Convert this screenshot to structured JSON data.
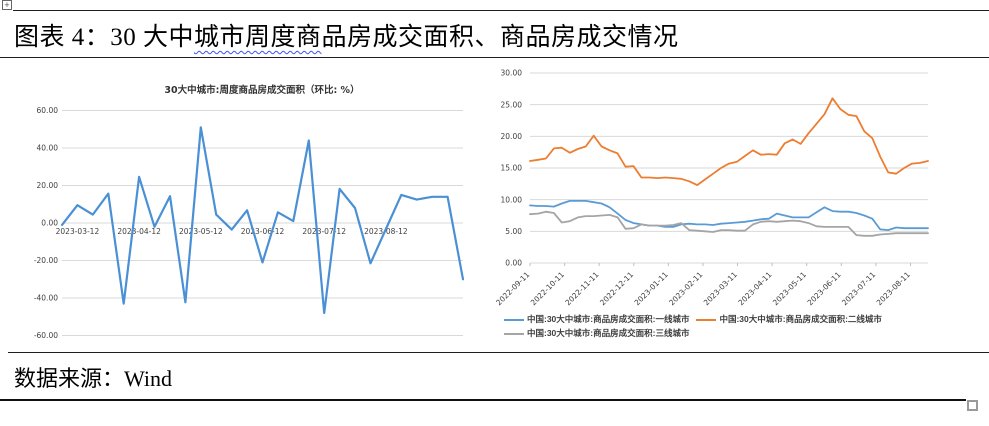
{
  "document": {
    "figure_title_prefix": "图表 4：30 大中",
    "figure_title_squiggle": "城市周度商",
    "figure_title_suffix": "品房成交面积、商品房成交情况",
    "source_text": "数据来源：Wind"
  },
  "colors": {
    "line_blue": "#5B9BD5",
    "line_blue_left": "#4A90D5",
    "line_orange": "#ED7D31",
    "line_gray": "#A5A5A5",
    "gridline": "#D9D9D9",
    "chart_text": "#404040"
  },
  "chart_data": [
    {
      "type": "line",
      "title": "30大中城市:周度商品房成交面积（环比: %）",
      "ylim": [
        -60,
        60
      ],
      "ytick_step": 20,
      "grid": true,
      "legend_position": "none",
      "x_tick_labels": [
        "2023-03-12",
        "2023-04-12",
        "2023-05-12",
        "2023-06-12",
        "2023-07-12",
        "2023-08-12"
      ],
      "series": [
        {
          "name": "30大中城市:周度商品房成交面积(环比,%)",
          "color": "#4A90D5",
          "values": [
            -1,
            9.5,
            4.5,
            15.7,
            -43,
            24.6,
            -2,
            14.3,
            -42.3,
            51,
            4.5,
            -3.5,
            6.8,
            -21,
            5.7,
            1,
            44,
            -48,
            18.2,
            8,
            -21.5,
            -3.2,
            15,
            12.5,
            14,
            14,
            -30
          ]
        }
      ]
    },
    {
      "type": "line",
      "title": "",
      "ylim": [
        0,
        30
      ],
      "ytick_step": 5,
      "grid": true,
      "legend_position": "bottom",
      "x_tick_labels": [
        "2022-09-11",
        "2022-10-11",
        "2022-11-11",
        "2022-12-11",
        "2023-01-11",
        "2023-02-11",
        "2023-03-11",
        "2023-04-11",
        "2023-05-11",
        "2023-06-11",
        "2023-07-11",
        "2023-08-11"
      ],
      "series": [
        {
          "name": "中国:30大中城市:商品房成交面积:一线城市",
          "color": "#5B9BD5",
          "values": [
            9.1,
            9.0,
            9.0,
            8.9,
            9.4,
            9.8,
            9.8,
            9.8,
            9.6,
            9.4,
            8.8,
            7.8,
            6.8,
            6.3,
            6.1,
            5.9,
            5.9,
            5.7,
            5.7,
            6.1,
            6.2,
            6.1,
            6.1,
            6.0,
            6.2,
            6.3,
            6.4,
            6.5,
            6.7,
            6.9,
            7.0,
            7.8,
            7.5,
            7.2,
            7.2,
            7.2,
            8.0,
            8.8,
            8.2,
            8.1,
            8.1,
            7.9,
            7.5,
            7.0,
            5.3,
            5.2,
            5.6,
            5.5,
            5.5,
            5.5,
            5.5
          ]
        },
        {
          "name": "中国:30大中城市:商品房成交面积:二线城市",
          "color": "#ED7D31",
          "values": [
            16.1,
            16.3,
            16.5,
            18.1,
            18.2,
            17.4,
            18.0,
            18.4,
            20.1,
            18.4,
            17.8,
            17.3,
            15.2,
            15.3,
            13.5,
            13.5,
            13.4,
            13.5,
            13.4,
            13.3,
            12.9,
            12.3,
            13.2,
            14.1,
            15.0,
            15.7,
            16.0,
            16.9,
            17.8,
            17.1,
            17.2,
            17.1,
            18.9,
            19.5,
            18.8,
            20.5,
            22.0,
            23.5,
            26.0,
            24.3,
            23.4,
            23.2,
            20.8,
            19.7,
            16.8,
            14.3,
            14.1,
            15.0,
            15.7,
            15.8,
            16.1
          ]
        },
        {
          "name": "中国:30大中城市:商品房成交面积:三线城市",
          "color": "#A5A5A5",
          "values": [
            7.7,
            7.8,
            8.1,
            7.9,
            6.4,
            6.6,
            7.2,
            7.4,
            7.4,
            7.5,
            7.6,
            7.2,
            5.4,
            5.5,
            6.1,
            5.9,
            5.9,
            5.9,
            6.0,
            6.3,
            5.2,
            5.1,
            5.0,
            4.9,
            5.2,
            5.2,
            5.1,
            5.1,
            6.1,
            6.5,
            6.6,
            6.5,
            6.6,
            6.7,
            6.6,
            6.3,
            5.8,
            5.7,
            5.7,
            5.7,
            5.7,
            4.4,
            4.3,
            4.3,
            4.5,
            4.6,
            4.7,
            4.7,
            4.7,
            4.7,
            4.7
          ]
        }
      ]
    }
  ]
}
